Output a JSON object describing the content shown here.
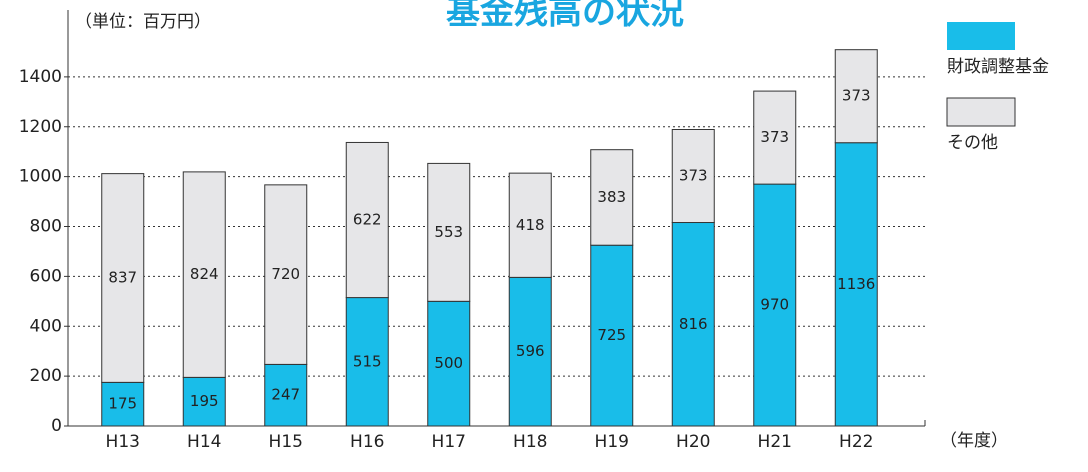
{
  "chart_data": {
    "type": "stacked_bar",
    "title": "基金残高の状況",
    "unit_label": "（単位：百万円）",
    "x_unit_label": "（年度）",
    "categories": [
      "H13",
      "H14",
      "H15",
      "H16",
      "H17",
      "H18",
      "H19",
      "H20",
      "H21",
      "H22"
    ],
    "series": [
      {
        "name": "財政調整基金",
        "color": "#19bde9",
        "values": [
          175,
          195,
          247,
          515,
          500,
          596,
          725,
          816,
          970,
          1136
        ]
      },
      {
        "name": "その他",
        "color": "#e6e6e8",
        "values": [
          837,
          824,
          720,
          622,
          553,
          418,
          383,
          373,
          373,
          373
        ]
      }
    ],
    "ylim": [
      0,
      1600
    ],
    "yticks": [
      0,
      200,
      400,
      600,
      800,
      1000,
      1200,
      1400
    ],
    "grid": true,
    "legend": "right"
  }
}
